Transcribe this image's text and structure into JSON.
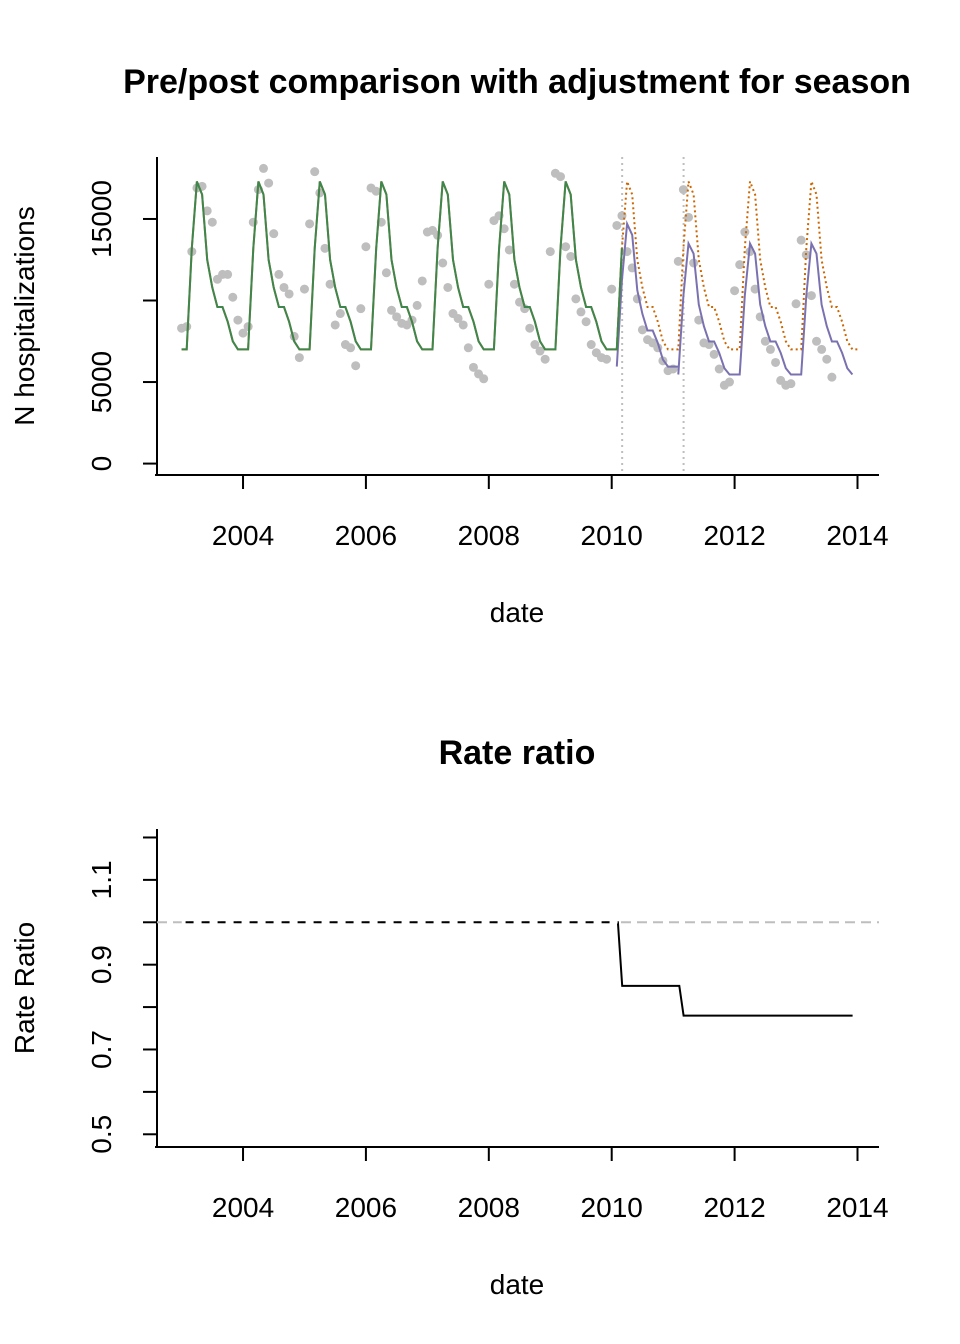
{
  "chart_data": [
    {
      "type": "line",
      "title": "Pre/post comparison with adjustment for season",
      "xlabel": "date",
      "ylabel": "N hospitalizations",
      "xlim": [
        2002.6,
        2014.35
      ],
      "ylim": [
        -700,
        18800
      ],
      "x_ticks": [
        2004,
        2006,
        2008,
        2010,
        2012,
        2014
      ],
      "y_ticks": [
        0,
        5000,
        10000,
        15000
      ],
      "y_tick_labels": [
        "0",
        "5000",
        "",
        "15000"
      ],
      "intervention_dates": [
        2010.17,
        2011.17
      ],
      "colors": {
        "observed": "#bebebe",
        "fitted": "#2e8b57",
        "counterfactual": "#cc6600",
        "post_fit": "#7a72b0",
        "reference": "#bebebe"
      },
      "seasonal_template": [
        7000,
        7000,
        13200,
        17300,
        16500,
        12500,
        10800,
        9600,
        9600,
        8700,
        7500,
        7000
      ],
      "observed": {
        "start": 2003.0,
        "step": 0.0833333,
        "values": [
          8300,
          8400,
          13000,
          16900,
          17000,
          15500,
          14800,
          11300,
          11600,
          11600,
          10200,
          8800,
          8000,
          8400,
          14800,
          16800,
          18100,
          17200,
          14100,
          11600,
          10800,
          10400,
          7800,
          6500,
          10700,
          14700,
          17900,
          16600,
          13200,
          11000,
          8500,
          9200,
          7300,
          7100,
          6000,
          9500,
          13300,
          16900,
          16700,
          14800,
          11700,
          9400,
          9000,
          8600,
          8500,
          8800,
          9700,
          11200,
          14200,
          14300,
          14000,
          12300,
          10800,
          9200,
          8900,
          8500,
          7100,
          5900,
          5500,
          5200,
          11000,
          14900,
          15200,
          14400,
          13100,
          11000,
          9900,
          9500,
          8300,
          7300,
          6900,
          6400,
          13000,
          17800,
          17600,
          13300,
          12700,
          10100,
          9300,
          8700,
          7300,
          6800,
          6500,
          6400,
          10700,
          14600,
          15200,
          13000,
          12000,
          10100,
          8200,
          7600,
          7400,
          7100,
          6300,
          5700,
          5800,
          12400,
          16800,
          15100,
          12300,
          8800,
          7400,
          7300,
          6700,
          5800,
          4800,
          5000,
          10600,
          12200,
          14200,
          13000,
          10700,
          9000,
          7500,
          7000,
          6200,
          5100,
          4800,
          4900,
          9800,
          13700,
          12800,
          10300,
          7500,
          7000,
          6400,
          5300
        ]
      },
      "fitted_pre": {
        "start": 2003.0,
        "end": 2010.1667
      },
      "counterfactual": {
        "start": 2010.0833,
        "end": 2014.0,
        "scale": 1.0
      },
      "post_fit": [
        {
          "start": 2010.0833,
          "end": 2011.0833,
          "scale": 0.85
        },
        {
          "start": 2011.0833,
          "end": 2013.9167,
          "scale": 0.78
        }
      ]
    },
    {
      "type": "line",
      "title": "Rate ratio",
      "xlabel": "date",
      "ylabel": "Rate Ratio",
      "xlim": [
        2002.6,
        2014.35
      ],
      "ylim": [
        0.47,
        1.22
      ],
      "x_ticks": [
        2004,
        2006,
        2008,
        2010,
        2012,
        2014
      ],
      "y_ticks": [
        0.5,
        0.6,
        0.7,
        0.8,
        0.9,
        1.0,
        1.1,
        1.2
      ],
      "y_tick_labels": [
        "0.5",
        "",
        "0.7",
        "",
        "0.9",
        "",
        "1.1",
        ""
      ],
      "reference_line": 1.0,
      "steps": [
        {
          "x": 2003.0,
          "y": 1.0
        },
        {
          "x": 2010.1,
          "y": 1.0
        },
        {
          "x": 2010.17,
          "y": 0.85
        },
        {
          "x": 2011.1,
          "y": 0.85
        },
        {
          "x": 2011.17,
          "y": 0.78
        },
        {
          "x": 2013.92,
          "y": 0.78
        }
      ],
      "colors": {
        "line": "#000000",
        "reference": "#bebebe"
      }
    }
  ]
}
